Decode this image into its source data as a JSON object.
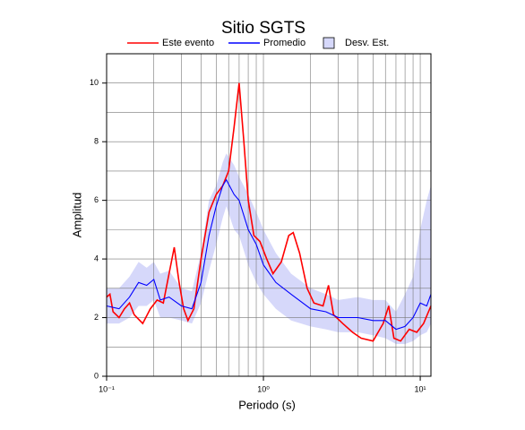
{
  "chart_data": {
    "type": "line",
    "title": "Sitio SGTS",
    "x_label": "Periodo (s)",
    "y_label": "Amplitud",
    "xscale": "log",
    "xlim": [
      0.1,
      11.7
    ],
    "ylim": [
      0,
      11
    ],
    "xticks": [
      {
        "value": 0.1,
        "label": "10⁻¹"
      },
      {
        "value": 1,
        "label": "10⁰"
      },
      {
        "value": 10,
        "label": "10¹"
      }
    ],
    "x_minor_ticks": [
      0.2,
      0.3,
      0.4,
      0.5,
      0.6,
      0.7,
      0.8,
      0.9,
      2,
      3,
      4,
      5,
      6,
      7,
      8,
      9
    ],
    "yticks": [
      0,
      2,
      4,
      6,
      8,
      10
    ],
    "y_minor_ticks": [
      1,
      3,
      5,
      7,
      9
    ],
    "grid": true,
    "series": [
      {
        "name": "Este evento",
        "color": "#ff0000",
        "x": [
          0.1,
          0.105,
          0.11,
          0.12,
          0.13,
          0.14,
          0.15,
          0.17,
          0.19,
          0.21,
          0.23,
          0.25,
          0.27,
          0.29,
          0.31,
          0.33,
          0.36,
          0.4,
          0.45,
          0.5,
          0.55,
          0.6,
          0.65,
          0.7,
          0.75,
          0.8,
          0.87,
          0.95,
          1.05,
          1.15,
          1.3,
          1.45,
          1.55,
          1.7,
          1.9,
          2.1,
          2.4,
          2.6,
          2.8,
          3.2,
          3.7,
          4.2,
          5,
          5.8,
          6.3,
          6.8,
          7.5,
          8.5,
          9.5,
          10.5,
          11.7
        ],
        "values": [
          2.7,
          2.8,
          2.2,
          2.0,
          2.3,
          2.5,
          2.1,
          1.8,
          2.3,
          2.6,
          2.5,
          3.5,
          4.4,
          3.2,
          2.3,
          1.9,
          2.3,
          4.0,
          5.6,
          6.2,
          6.5,
          7.0,
          8.5,
          10.0,
          8.0,
          6.0,
          4.8,
          4.6,
          4.0,
          3.5,
          3.9,
          4.8,
          4.9,
          4.2,
          3.0,
          2.5,
          2.4,
          3.1,
          2.1,
          1.8,
          1.5,
          1.3,
          1.2,
          1.8,
          2.4,
          1.3,
          1.2,
          1.6,
          1.5,
          1.8,
          2.4
        ]
      },
      {
        "name": "Promedio",
        "color": "#0000ff",
        "x": [
          0.1,
          0.12,
          0.14,
          0.16,
          0.18,
          0.2,
          0.22,
          0.25,
          0.3,
          0.35,
          0.4,
          0.45,
          0.5,
          0.55,
          0.58,
          0.65,
          0.7,
          0.8,
          0.9,
          1.0,
          1.2,
          1.5,
          2,
          2.5,
          3,
          4,
          5,
          6,
          7,
          8,
          9,
          10,
          11,
          11.7
        ],
        "values": [
          2.4,
          2.3,
          2.7,
          3.2,
          3.1,
          3.3,
          2.6,
          2.7,
          2.4,
          2.3,
          3.2,
          4.8,
          5.8,
          6.5,
          6.7,
          6.2,
          6.0,
          5.0,
          4.5,
          3.8,
          3.2,
          2.8,
          2.3,
          2.2,
          2.0,
          2.0,
          1.9,
          1.9,
          1.6,
          1.7,
          2.0,
          2.5,
          2.4,
          2.8
        ]
      },
      {
        "name": "Desv. Est.",
        "color": "#d6d8fa",
        "kind": "band",
        "x": [
          0.1,
          0.12,
          0.14,
          0.16,
          0.18,
          0.2,
          0.22,
          0.25,
          0.3,
          0.35,
          0.4,
          0.45,
          0.5,
          0.55,
          0.58,
          0.65,
          0.7,
          0.8,
          0.9,
          1.0,
          1.2,
          1.5,
          2,
          2.5,
          3,
          4,
          5,
          6,
          7,
          8,
          9,
          10,
          11,
          11.7
        ],
        "upper": [
          3.0,
          3.0,
          3.4,
          3.9,
          3.7,
          3.9,
          3.5,
          3.6,
          3.0,
          2.9,
          4.2,
          6.0,
          6.5,
          7.3,
          7.6,
          7.2,
          6.8,
          6.2,
          5.6,
          5.0,
          4.2,
          3.5,
          3.0,
          2.8,
          2.6,
          2.7,
          2.6,
          2.6,
          2.2,
          2.8,
          3.4,
          5.0,
          6.0,
          6.5
        ],
        "lower": [
          1.8,
          1.8,
          2.0,
          2.4,
          2.4,
          2.6,
          2.0,
          2.0,
          1.9,
          1.8,
          2.5,
          3.6,
          4.5,
          5.4,
          5.8,
          5.0,
          4.8,
          3.8,
          3.2,
          2.8,
          2.3,
          1.9,
          1.7,
          1.6,
          1.5,
          1.5,
          1.4,
          1.3,
          1.1,
          1.1,
          1.2,
          1.4,
          1.5,
          1.8
        ]
      }
    ]
  }
}
